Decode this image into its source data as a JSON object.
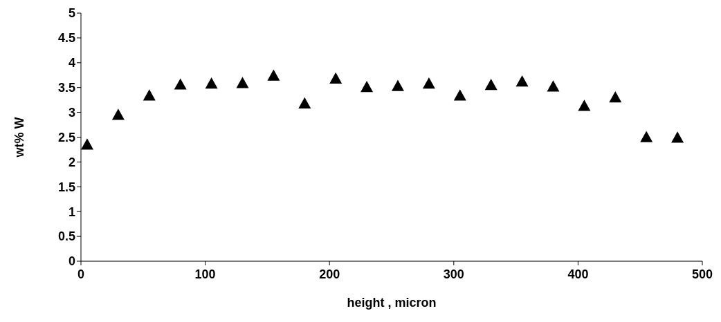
{
  "chart_data": {
    "type": "scatter",
    "xlabel": "height , micron",
    "ylabel": "wt% W",
    "x": [
      5,
      30,
      55,
      80,
      105,
      130,
      155,
      180,
      205,
      230,
      255,
      280,
      305,
      330,
      355,
      380,
      405,
      430,
      455,
      480
    ],
    "series": [
      {
        "color": "#000000",
        "values": [
          2.35,
          2.95,
          3.34,
          3.56,
          3.58,
          3.59,
          3.74,
          3.18,
          3.68,
          3.51,
          3.53,
          3.58,
          3.34,
          3.55,
          3.62,
          3.52,
          3.13,
          3.3,
          2.5,
          2.49
        ]
      }
    ],
    "marker": "triangle",
    "xlim": [
      0,
      500
    ],
    "xticks": [
      0,
      100,
      200,
      300,
      400,
      500
    ],
    "ylim": [
      0,
      5
    ],
    "yticks": [
      0,
      0.5,
      1,
      1.5,
      2,
      2.5,
      3,
      3.5,
      4,
      4.5,
      5
    ],
    "grid": false,
    "legend": false
  }
}
